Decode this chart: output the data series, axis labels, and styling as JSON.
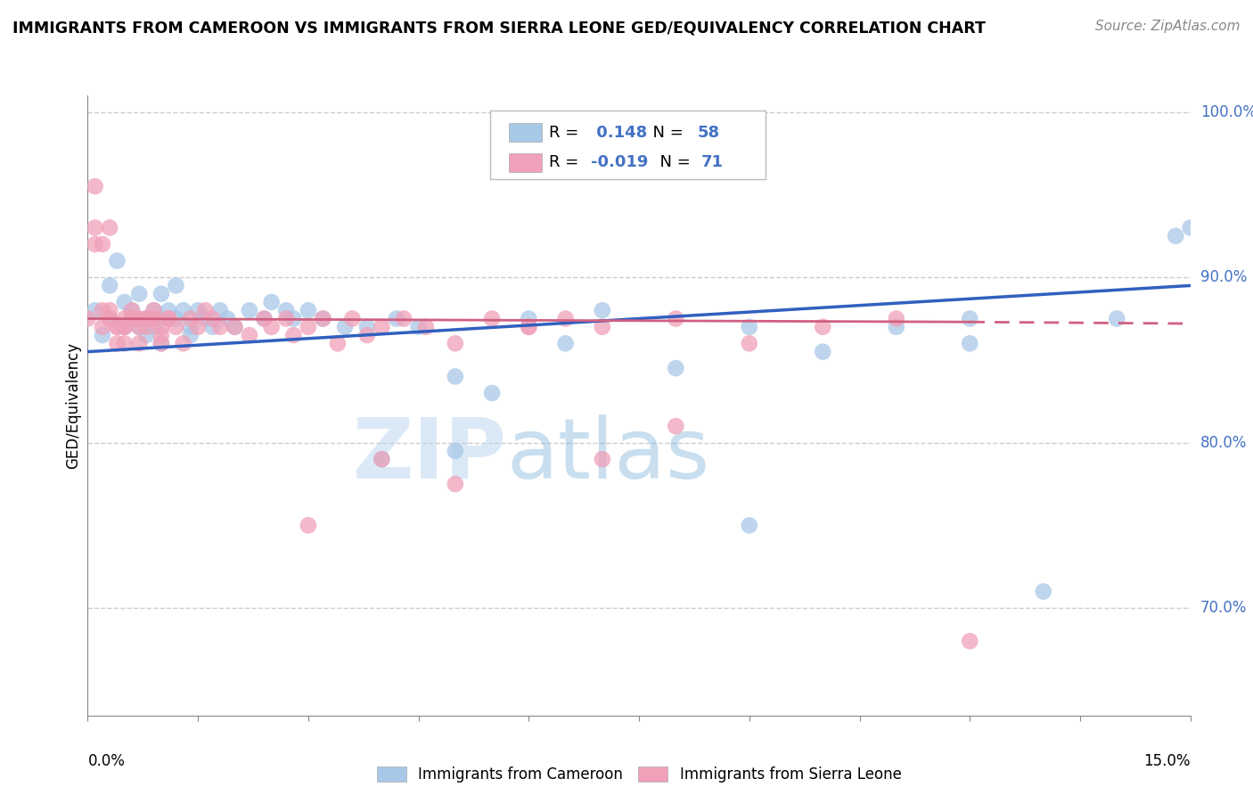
{
  "title": "IMMIGRANTS FROM CAMEROON VS IMMIGRANTS FROM SIERRA LEONE GED/EQUIVALENCY CORRELATION CHART",
  "source": "Source: ZipAtlas.com",
  "ylabel": "GED/Equivalency",
  "R1": 0.148,
  "N1": 58,
  "R2": -0.019,
  "N2": 71,
  "color_blue": "#a8c8e8",
  "color_pink": "#f0a0b8",
  "line_blue": "#3060c0",
  "line_pink": "#d06080",
  "text_color_blue": "#4472c4",
  "background_color": "#ffffff",
  "legend_label1": "Immigrants from Cameroon",
  "legend_label2": "Immigrants from Sierra Leone",
  "xlim": [
    0.0,
    0.15
  ],
  "ylim": [
    0.635,
    1.01
  ],
  "yticks": [
    0.7,
    0.8,
    0.9,
    1.0
  ],
  "ytick_labels": [
    "70.0%",
    "80.0%",
    "90.0%",
    "100.0%"
  ],
  "blue_x": [
    0.001,
    0.002,
    0.003,
    0.003,
    0.004,
    0.005,
    0.005,
    0.006,
    0.007,
    0.007,
    0.008,
    0.008,
    0.009,
    0.009,
    0.01,
    0.01,
    0.01,
    0.011,
    0.012,
    0.012,
    0.013,
    0.014,
    0.014,
    0.015,
    0.016,
    0.017,
    0.018,
    0.019,
    0.02,
    0.022,
    0.024,
    0.025,
    0.027,
    0.028,
    0.03,
    0.032,
    0.035,
    0.038,
    0.04,
    0.042,
    0.045,
    0.05,
    0.055,
    0.06,
    0.065,
    0.07,
    0.08,
    0.09,
    0.1,
    0.11,
    0.12,
    0.13,
    0.14,
    0.148,
    0.15,
    0.12,
    0.09,
    0.05
  ],
  "blue_y": [
    0.88,
    0.865,
    0.875,
    0.895,
    0.91,
    0.87,
    0.885,
    0.88,
    0.87,
    0.89,
    0.865,
    0.875,
    0.88,
    0.87,
    0.875,
    0.86,
    0.89,
    0.88,
    0.875,
    0.895,
    0.88,
    0.87,
    0.865,
    0.88,
    0.875,
    0.87,
    0.88,
    0.875,
    0.87,
    0.88,
    0.875,
    0.885,
    0.88,
    0.875,
    0.88,
    0.875,
    0.87,
    0.87,
    0.79,
    0.875,
    0.87,
    0.84,
    0.83,
    0.875,
    0.86,
    0.88,
    0.845,
    0.75,
    0.855,
    0.87,
    0.875,
    0.71,
    0.875,
    0.925,
    0.93,
    0.86,
    0.87,
    0.795
  ],
  "pink_x": [
    0.0,
    0.001,
    0.001,
    0.002,
    0.002,
    0.003,
    0.003,
    0.004,
    0.004,
    0.005,
    0.005,
    0.005,
    0.006,
    0.006,
    0.007,
    0.007,
    0.008,
    0.008,
    0.009,
    0.009,
    0.01,
    0.01,
    0.011,
    0.012,
    0.013,
    0.014,
    0.015,
    0.016,
    0.017,
    0.018,
    0.02,
    0.022,
    0.024,
    0.025,
    0.027,
    0.028,
    0.03,
    0.032,
    0.034,
    0.036,
    0.038,
    0.04,
    0.043,
    0.046,
    0.05,
    0.055,
    0.06,
    0.065,
    0.07,
    0.08,
    0.09,
    0.1,
    0.11,
    0.12,
    0.03,
    0.04,
    0.05,
    0.06,
    0.07,
    0.08,
    0.001,
    0.002,
    0.003,
    0.004,
    0.005,
    0.006,
    0.007,
    0.008,
    0.009,
    0.01,
    0.011
  ],
  "pink_y": [
    0.875,
    0.955,
    0.92,
    0.92,
    0.88,
    0.88,
    0.875,
    0.87,
    0.86,
    0.875,
    0.87,
    0.86,
    0.88,
    0.875,
    0.87,
    0.86,
    0.875,
    0.87,
    0.88,
    0.875,
    0.87,
    0.865,
    0.875,
    0.87,
    0.86,
    0.875,
    0.87,
    0.88,
    0.875,
    0.87,
    0.87,
    0.865,
    0.875,
    0.87,
    0.875,
    0.865,
    0.87,
    0.875,
    0.86,
    0.875,
    0.865,
    0.87,
    0.875,
    0.87,
    0.86,
    0.875,
    0.87,
    0.875,
    0.87,
    0.875,
    0.86,
    0.87,
    0.875,
    0.68,
    0.75,
    0.79,
    0.775,
    0.87,
    0.79,
    0.81,
    0.93,
    0.87,
    0.93,
    0.87,
    0.87,
    0.875,
    0.875,
    0.875,
    0.875,
    0.86,
    0.875
  ],
  "blue_line_x": [
    0.0,
    0.15
  ],
  "blue_line_y": [
    0.855,
    0.895
  ],
  "pink_line_x": [
    0.0,
    0.12
  ],
  "pink_line_y": [
    0.875,
    0.873
  ]
}
